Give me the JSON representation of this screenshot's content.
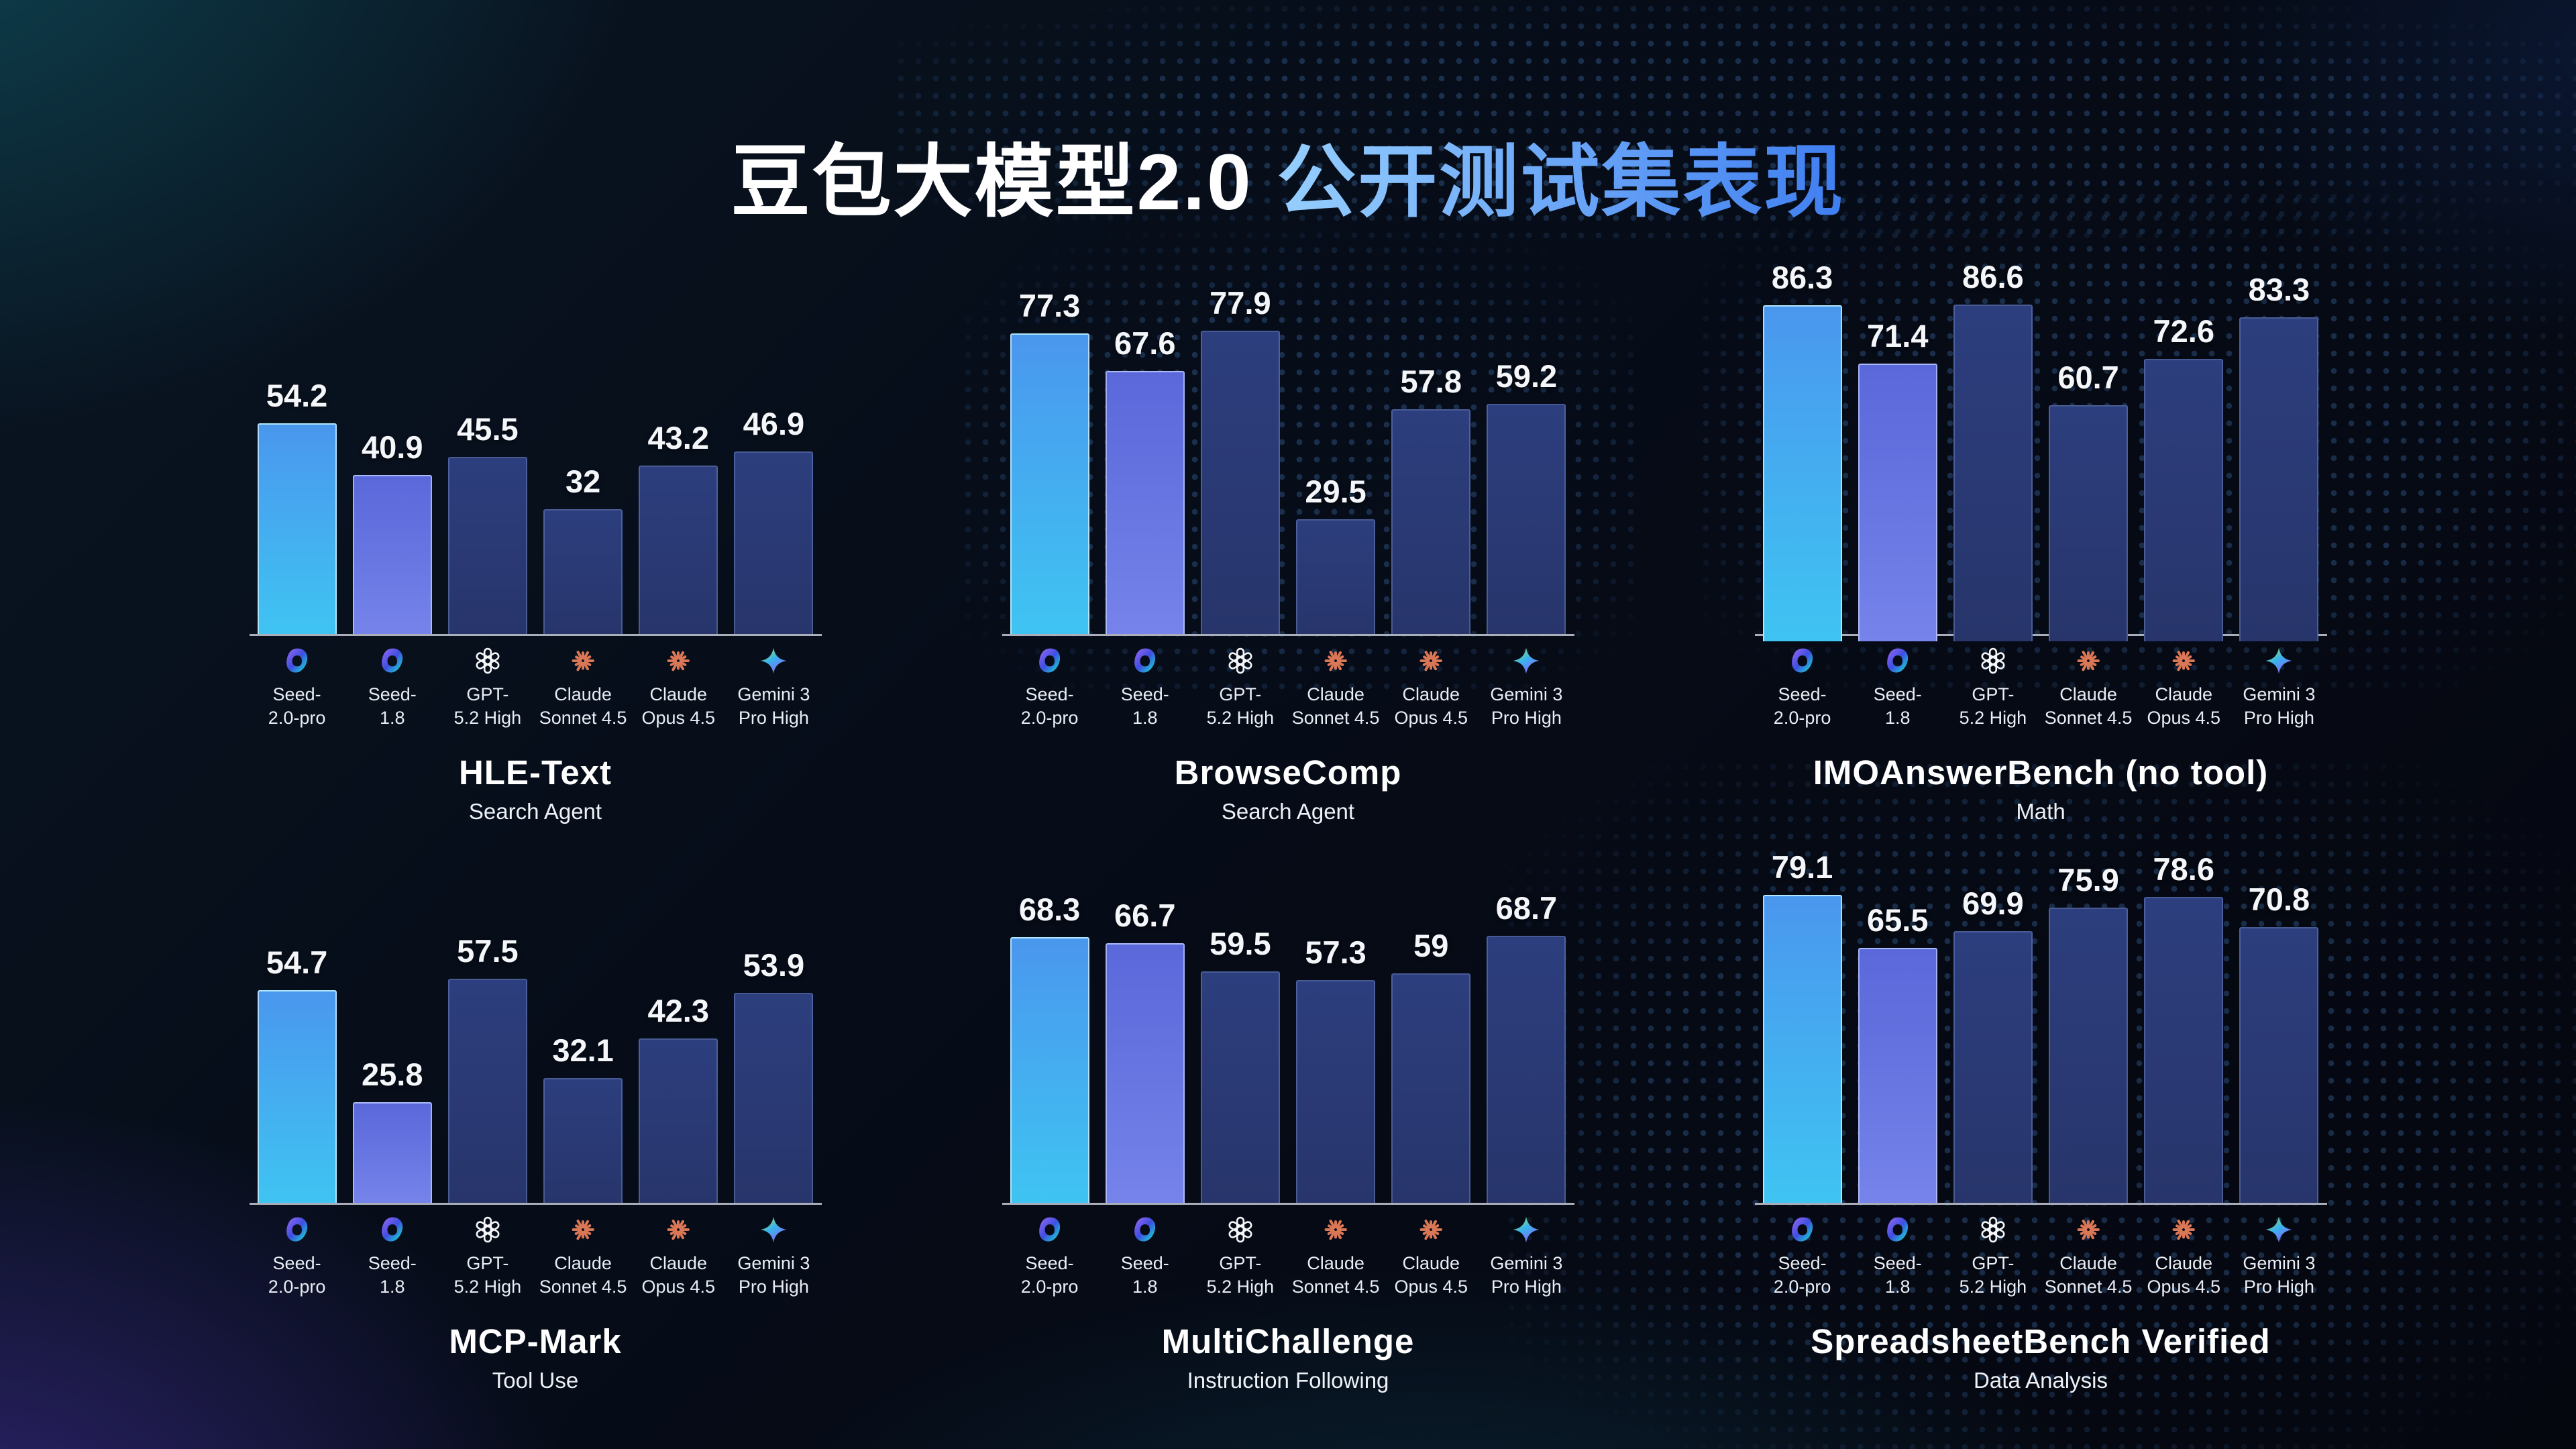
{
  "title": {
    "white_part": "豆包大模型2.0",
    "accent_part": " 公开测试集表现"
  },
  "models": [
    {
      "line1": "Seed-",
      "line2": "2.0-pro",
      "icon": "seed-icon"
    },
    {
      "line1": "Seed-",
      "line2": "1.8",
      "icon": "seed-icon"
    },
    {
      "line1": "GPT-",
      "line2": "5.2 High",
      "icon": "openai-icon"
    },
    {
      "line1": "Claude",
      "line2": "Sonnet 4.5",
      "icon": "claude-icon"
    },
    {
      "line1": "Claude",
      "line2": "Opus 4.5",
      "icon": "claude-icon"
    },
    {
      "line1": "Gemini 3",
      "line2": "Pro High",
      "icon": "gemini-icon"
    }
  ],
  "chart_data": [
    {
      "type": "bar",
      "title": "HLE-Text",
      "subtitle": "Search Agent",
      "categories": [
        "Seed-2.0-pro",
        "Seed-1.8",
        "GPT-5.2 High",
        "Claude Sonnet 4.5",
        "Claude Opus 4.5",
        "Gemini 3 Pro High"
      ],
      "values": [
        54.2,
        40.9,
        45.5,
        32,
        43.2,
        46.9
      ],
      "ylim": [
        0,
        100
      ],
      "grid": false,
      "legend": "none"
    },
    {
      "type": "bar",
      "title": "BrowseComp",
      "subtitle": "Search Agent",
      "categories": [
        "Seed-2.0-pro",
        "Seed-1.8",
        "GPT-5.2 High",
        "Claude Sonnet 4.5",
        "Claude Opus 4.5",
        "Gemini 3 Pro High"
      ],
      "values": [
        77.3,
        67.6,
        77.9,
        29.5,
        57.8,
        59.2
      ],
      "ylim": [
        0,
        100
      ],
      "grid": false,
      "legend": "none"
    },
    {
      "type": "bar",
      "title": "IMOAnswerBench (no tool)",
      "subtitle": "Math",
      "categories": [
        "Seed-2.0-pro",
        "Seed-1.8",
        "GPT-5.2 High",
        "Claude Sonnet 4.5",
        "Claude Opus 4.5",
        "Gemini 3 Pro High"
      ],
      "values": [
        86.3,
        71.4,
        86.6,
        60.7,
        72.6,
        83.3
      ],
      "ylim": [
        0,
        100
      ],
      "grid": false,
      "legend": "none"
    },
    {
      "type": "bar",
      "title": "MCP-Mark",
      "subtitle": "Tool Use",
      "categories": [
        "Seed-2.0-pro",
        "Seed-1.8",
        "GPT-5.2 High",
        "Claude Sonnet 4.5",
        "Claude Opus 4.5",
        "Gemini 3 Pro High"
      ],
      "values": [
        54.7,
        25.8,
        57.5,
        32.1,
        42.3,
        53.9
      ],
      "ylim": [
        0,
        100
      ],
      "grid": false,
      "legend": "none"
    },
    {
      "type": "bar",
      "title": "MultiChallenge",
      "subtitle": "Instruction Following",
      "categories": [
        "Seed-2.0-pro",
        "Seed-1.8",
        "GPT-5.2 High",
        "Claude Sonnet 4.5",
        "Claude Opus 4.5",
        "Gemini 3 Pro High"
      ],
      "values": [
        68.3,
        66.7,
        59.5,
        57.3,
        59,
        68.7
      ],
      "ylim": [
        0,
        100
      ],
      "grid": false,
      "legend": "none"
    },
    {
      "type": "bar",
      "title": "SpreadsheetBench Verified",
      "subtitle": "Data Analysis",
      "categories": [
        "Seed-2.0-pro",
        "Seed-1.8",
        "GPT-5.2 High",
        "Claude Sonnet 4.5",
        "Claude Opus 4.5",
        "Gemini 3 Pro High"
      ],
      "values": [
        79.1,
        65.5,
        69.9,
        75.9,
        78.6,
        70.8
      ],
      "ylim": [
        0,
        100
      ],
      "grid": false,
      "legend": "none"
    }
  ],
  "colors": {
    "accent_light": "#9ad2ff",
    "accent_dark": "#3f7ef0",
    "bar_seed_pro_top": "#4a97ee",
    "bar_seed_pro_bottom": "#3fc4f2",
    "bar_seed_18_top": "#5a68da",
    "bar_seed_18_bottom": "#7583ea",
    "bar_other_top": "#2d3e7e",
    "bar_other_bottom": "#27356b",
    "baseline": "#a9aeba",
    "claude_orange": "#d97757",
    "openai_white": "#f5f6f8",
    "seed_purple": "#9d68f5",
    "seed_blue": "#3d4fe0",
    "seed_teal": "#35dfb4",
    "gemini_green": "#9be15d",
    "gemini_blue": "#37b2f0",
    "gemini_purple": "#9b5cf7"
  }
}
